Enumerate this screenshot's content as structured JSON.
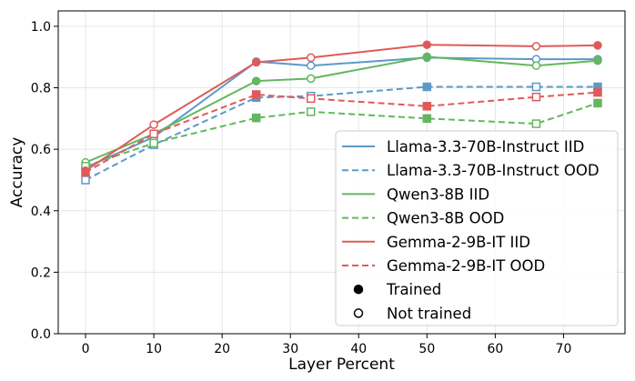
{
  "chart_data": {
    "type": "line",
    "xlabel": "Layer Percent",
    "ylabel": "Accuracy",
    "xlim": [
      -4,
      79
    ],
    "ylim": [
      0.0,
      1.05
    ],
    "xticks": [
      0,
      10,
      20,
      30,
      40,
      50,
      60,
      70
    ],
    "yticks": [
      0.0,
      0.2,
      0.4,
      0.6,
      0.8,
      1.0
    ],
    "xtick_labels": [
      "0",
      "10",
      "20",
      "30",
      "40",
      "50",
      "60",
      "70"
    ],
    "ytick_labels": [
      "0.0",
      "0.2",
      "0.4",
      "0.6",
      "0.8",
      "1.0"
    ],
    "grid": true,
    "legend_position": "lower-right",
    "series": [
      {
        "name": "Llama-3.3-70B-Instruct IID",
        "color": "#5b9ac7",
        "style": "solid",
        "marker": "circle",
        "x": [
          0,
          10,
          25,
          33,
          50,
          66,
          75
        ],
        "y": [
          0.54,
          0.64,
          0.885,
          0.872,
          0.898,
          0.893,
          0.893
        ],
        "trained": [
          false,
          false,
          true,
          false,
          true,
          false,
          false
        ]
      },
      {
        "name": "Llama-3.3-70B-Instruct OOD",
        "color": "#5b9ac7",
        "style": "dashed",
        "marker": "square",
        "x": [
          0,
          10,
          25,
          33,
          50,
          66,
          75
        ],
        "y": [
          0.5,
          0.615,
          0.768,
          0.773,
          0.803,
          0.803,
          0.803
        ],
        "trained": [
          false,
          false,
          true,
          false,
          true,
          false,
          true
        ]
      },
      {
        "name": "Qwen3-8B IID",
        "color": "#63b75e",
        "style": "solid",
        "marker": "circle",
        "x": [
          0,
          10,
          25,
          33,
          50,
          66,
          75
        ],
        "y": [
          0.557,
          0.65,
          0.822,
          0.83,
          0.901,
          0.872,
          0.888
        ],
        "trained": [
          false,
          false,
          true,
          false,
          true,
          false,
          true
        ]
      },
      {
        "name": "Qwen3-8B OOD",
        "color": "#63b75e",
        "style": "dashed",
        "marker": "square",
        "x": [
          0,
          10,
          25,
          33,
          50,
          66,
          75
        ],
        "y": [
          0.545,
          0.62,
          0.702,
          0.722,
          0.7,
          0.683,
          0.75
        ],
        "trained": [
          false,
          false,
          true,
          false,
          true,
          false,
          true
        ]
      },
      {
        "name": "Gemma-2-9B-IT IID",
        "color": "#e05a5a",
        "style": "solid",
        "marker": "circle",
        "x": [
          0,
          10,
          25,
          33,
          50,
          66,
          75
        ],
        "y": [
          0.53,
          0.68,
          0.883,
          0.898,
          0.94,
          0.935,
          0.938
        ],
        "trained": [
          true,
          false,
          true,
          false,
          true,
          false,
          true
        ]
      },
      {
        "name": "Gemma-2-9B-IT OOD",
        "color": "#e05a5a",
        "style": "dashed",
        "marker": "square",
        "x": [
          0,
          10,
          25,
          33,
          50,
          66,
          75
        ],
        "y": [
          0.525,
          0.65,
          0.778,
          0.765,
          0.74,
          0.77,
          0.785
        ],
        "trained": [
          true,
          false,
          true,
          false,
          true,
          false,
          true
        ]
      }
    ],
    "legend": [
      {
        "label": "Llama-3.3-70B-Instruct IID",
        "kind": "line",
        "color": "#5b9ac7",
        "style": "solid"
      },
      {
        "label": "Llama-3.3-70B-Instruct OOD",
        "kind": "line",
        "color": "#5b9ac7",
        "style": "dashed"
      },
      {
        "label": "Qwen3-8B IID",
        "kind": "line",
        "color": "#63b75e",
        "style": "solid"
      },
      {
        "label": "Qwen3-8B OOD",
        "kind": "line",
        "color": "#63b75e",
        "style": "dashed"
      },
      {
        "label": "Gemma-2-9B-IT IID",
        "kind": "line",
        "color": "#e05a5a",
        "style": "solid"
      },
      {
        "label": "Gemma-2-9B-IT OOD",
        "kind": "line",
        "color": "#e05a5a",
        "style": "dashed"
      },
      {
        "label": "Trained",
        "kind": "filled-marker",
        "color": "#000000"
      },
      {
        "label": "Not trained",
        "kind": "hollow-marker",
        "color": "#000000"
      }
    ]
  }
}
